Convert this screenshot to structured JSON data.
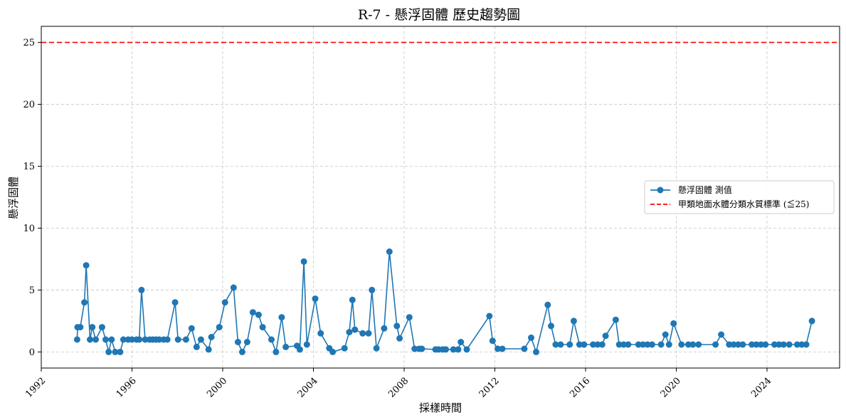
{
  "chart_data": {
    "type": "line",
    "title": "R-7 - 懸浮固體 歷史趨勢圖",
    "xlabel": "採樣時間",
    "ylabel": "懸浮固體",
    "xlim": [
      1992.0,
      2027.2
    ],
    "ylim": [
      -1.3,
      26.3
    ],
    "x_ticks": [
      1992,
      1996,
      2000,
      2004,
      2008,
      2012,
      2016,
      2020,
      2024
    ],
    "x_tick_labels": [
      "1992",
      "1996",
      "2000",
      "2004",
      "2008",
      "2012",
      "2016",
      "2020",
      "2024"
    ],
    "y_ticks": [
      0,
      5,
      10,
      15,
      20,
      25
    ],
    "y_tick_labels": [
      "0",
      "5",
      "10",
      "15",
      "20",
      "25"
    ],
    "grid": true,
    "legend_position": "center-right",
    "series": [
      {
        "name": "懸浮固體 測值",
        "color": "#1f77b4",
        "marker": "circle",
        "points": [
          [
            1993.58,
            1.0
          ],
          [
            1993.6,
            2.0
          ],
          [
            1993.72,
            2.0
          ],
          [
            1993.9,
            4.0
          ],
          [
            1993.98,
            7.0
          ],
          [
            1994.15,
            1.0
          ],
          [
            1994.25,
            2.0
          ],
          [
            1994.4,
            1.0
          ],
          [
            1994.68,
            2.0
          ],
          [
            1994.84,
            1.0
          ],
          [
            1994.97,
            0.0
          ],
          [
            1995.1,
            1.0
          ],
          [
            1995.26,
            0.0
          ],
          [
            1995.48,
            0.0
          ],
          [
            1995.62,
            1.0
          ],
          [
            1995.83,
            1.0
          ],
          [
            1996.0,
            1.0
          ],
          [
            1996.2,
            1.0
          ],
          [
            1996.32,
            1.0
          ],
          [
            1996.42,
            5.0
          ],
          [
            1996.58,
            1.0
          ],
          [
            1996.78,
            1.0
          ],
          [
            1996.92,
            1.0
          ],
          [
            1997.06,
            1.0
          ],
          [
            1997.2,
            1.0
          ],
          [
            1997.4,
            1.0
          ],
          [
            1997.56,
            1.0
          ],
          [
            1997.9,
            4.0
          ],
          [
            1998.03,
            1.0
          ],
          [
            1998.38,
            1.0
          ],
          [
            1998.63,
            1.9
          ],
          [
            1998.85,
            0.4
          ],
          [
            1999.04,
            1.0
          ],
          [
            1999.38,
            0.2
          ],
          [
            1999.5,
            1.2
          ],
          [
            1999.85,
            2.0
          ],
          [
            2000.1,
            4.0
          ],
          [
            2000.48,
            5.2
          ],
          [
            2000.67,
            0.8
          ],
          [
            2000.86,
            0.0
          ],
          [
            2001.08,
            0.8
          ],
          [
            2001.33,
            3.2
          ],
          [
            2001.58,
            3.0
          ],
          [
            2001.76,
            2.0
          ],
          [
            2002.15,
            1.0
          ],
          [
            2002.35,
            0.0
          ],
          [
            2002.6,
            2.8
          ],
          [
            2002.78,
            0.4
          ],
          [
            2003.28,
            0.5
          ],
          [
            2003.4,
            0.2
          ],
          [
            2003.58,
            7.3
          ],
          [
            2003.71,
            0.6
          ],
          [
            2004.08,
            4.3
          ],
          [
            2004.32,
            1.5
          ],
          [
            2004.7,
            0.3
          ],
          [
            2004.85,
            0.0
          ],
          [
            2005.37,
            0.3
          ],
          [
            2005.58,
            1.6
          ],
          [
            2005.72,
            4.2
          ],
          [
            2005.83,
            1.8
          ],
          [
            2006.17,
            1.5
          ],
          [
            2006.43,
            1.5
          ],
          [
            2006.58,
            5.0
          ],
          [
            2006.78,
            0.3
          ],
          [
            2007.12,
            1.9
          ],
          [
            2007.35,
            8.1
          ],
          [
            2007.68,
            2.1
          ],
          [
            2007.8,
            1.1
          ],
          [
            2008.23,
            2.8
          ],
          [
            2008.46,
            0.25
          ],
          [
            2008.66,
            0.25
          ],
          [
            2008.78,
            0.25
          ],
          [
            2009.38,
            0.2
          ],
          [
            2009.52,
            0.2
          ],
          [
            2009.7,
            0.2
          ],
          [
            2009.84,
            0.2
          ],
          [
            2010.17,
            0.2
          ],
          [
            2010.38,
            0.2
          ],
          [
            2010.5,
            0.8
          ],
          [
            2010.76,
            0.2
          ],
          [
            2011.76,
            2.9
          ],
          [
            2011.9,
            0.9
          ],
          [
            2012.13,
            0.25
          ],
          [
            2012.33,
            0.25
          ],
          [
            2013.3,
            0.25
          ],
          [
            2013.6,
            1.15
          ],
          [
            2013.82,
            0.0
          ],
          [
            2014.33,
            3.8
          ],
          [
            2014.48,
            2.1
          ],
          [
            2014.68,
            0.6
          ],
          [
            2014.9,
            0.6
          ],
          [
            2015.3,
            0.6
          ],
          [
            2015.48,
            2.5
          ],
          [
            2015.73,
            0.6
          ],
          [
            2015.93,
            0.6
          ],
          [
            2016.33,
            0.6
          ],
          [
            2016.53,
            0.6
          ],
          [
            2016.73,
            0.6
          ],
          [
            2016.88,
            1.3
          ],
          [
            2017.33,
            2.6
          ],
          [
            2017.48,
            0.6
          ],
          [
            2017.68,
            0.6
          ],
          [
            2017.88,
            0.6
          ],
          [
            2018.33,
            0.6
          ],
          [
            2018.53,
            0.6
          ],
          [
            2018.73,
            0.6
          ],
          [
            2018.93,
            0.6
          ],
          [
            2019.33,
            0.6
          ],
          [
            2019.52,
            1.4
          ],
          [
            2019.68,
            0.6
          ],
          [
            2019.88,
            2.3
          ],
          [
            2020.23,
            0.6
          ],
          [
            2020.53,
            0.6
          ],
          [
            2020.73,
            0.6
          ],
          [
            2020.98,
            0.6
          ],
          [
            2021.73,
            0.6
          ],
          [
            2021.98,
            1.4
          ],
          [
            2022.33,
            0.6
          ],
          [
            2022.53,
            0.6
          ],
          [
            2022.73,
            0.6
          ],
          [
            2022.93,
            0.6
          ],
          [
            2023.33,
            0.6
          ],
          [
            2023.53,
            0.6
          ],
          [
            2023.73,
            0.6
          ],
          [
            2023.93,
            0.6
          ],
          [
            2024.33,
            0.6
          ],
          [
            2024.53,
            0.6
          ],
          [
            2024.73,
            0.6
          ],
          [
            2024.98,
            0.6
          ],
          [
            2025.33,
            0.6
          ],
          [
            2025.53,
            0.6
          ],
          [
            2025.73,
            0.6
          ],
          [
            2025.98,
            2.5
          ]
        ]
      },
      {
        "name": "甲類地面水體分類水質標準 (≦25)",
        "color": "#ff0000",
        "style": "dashed",
        "constant_y": 25
      }
    ]
  }
}
